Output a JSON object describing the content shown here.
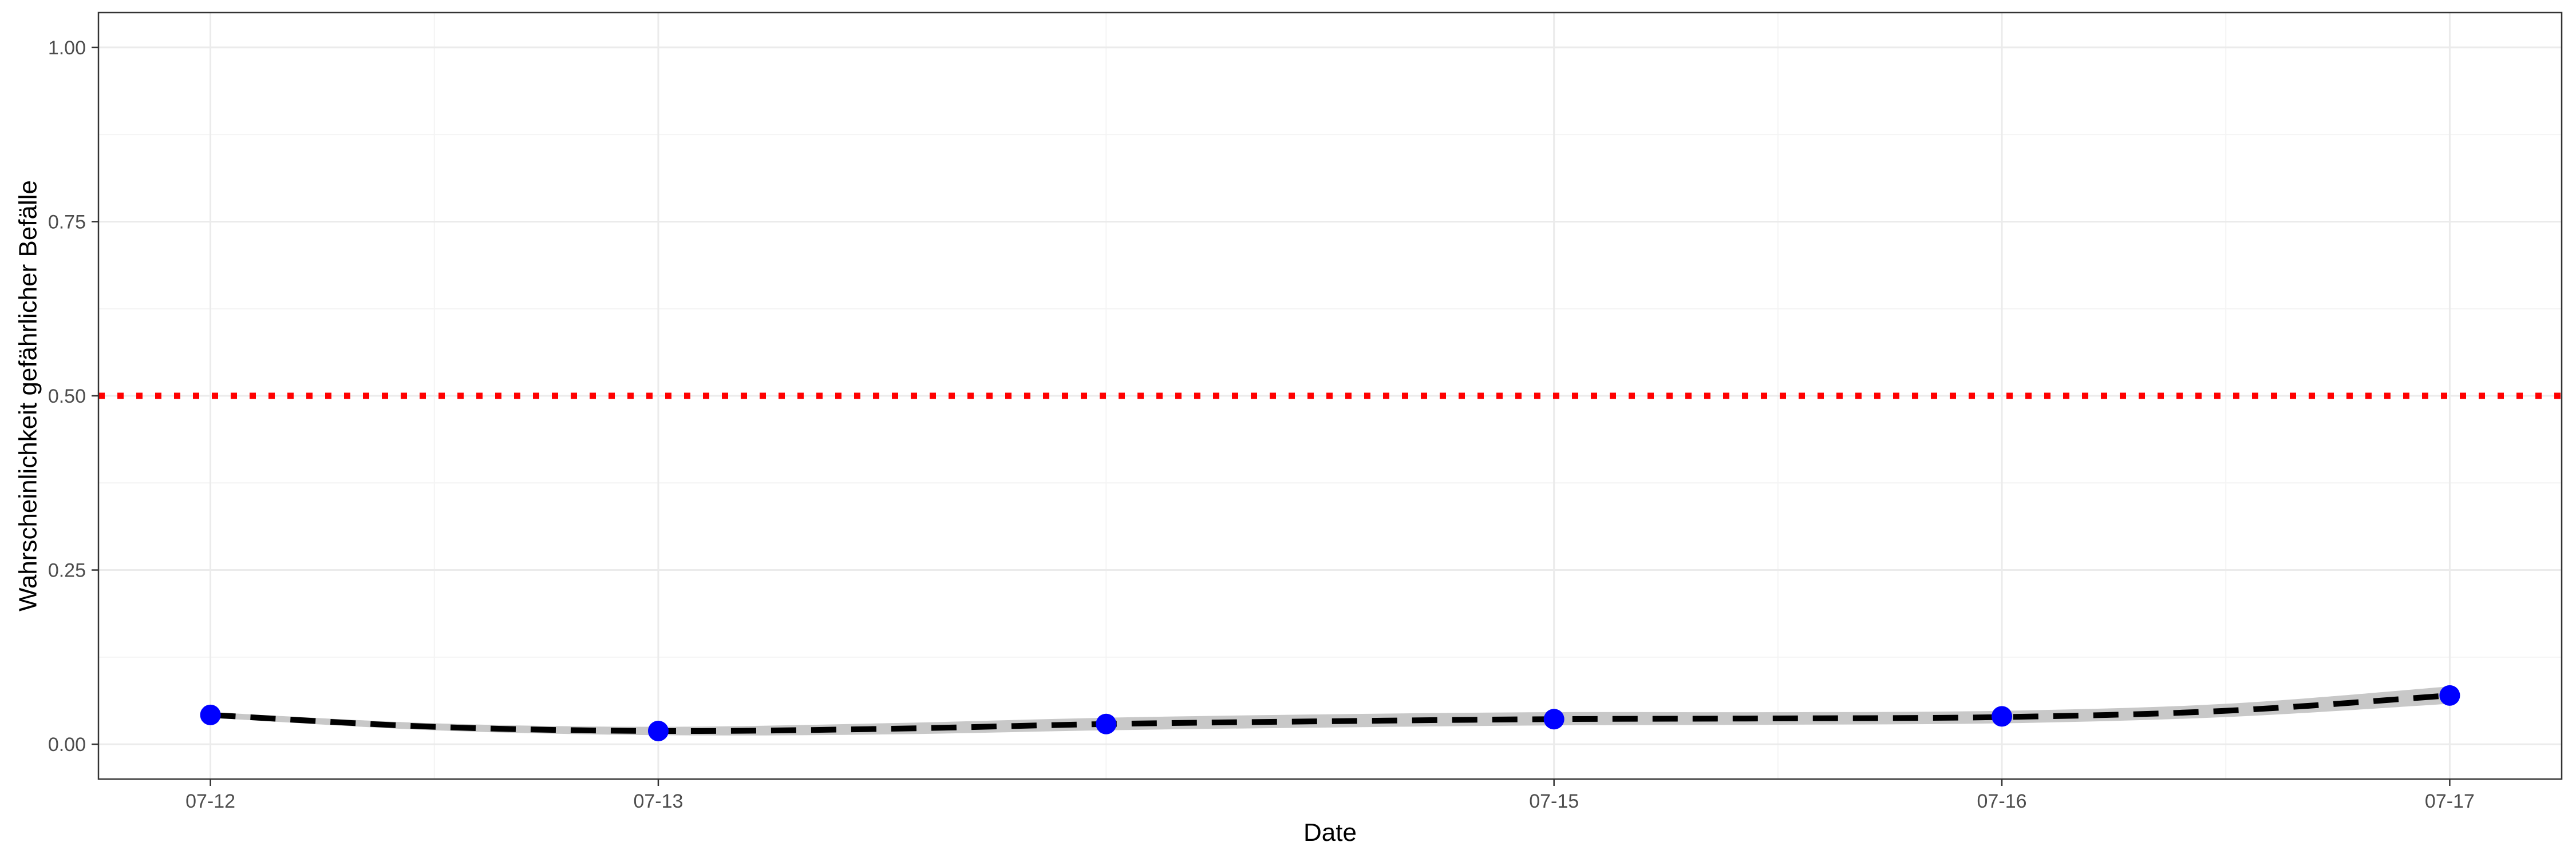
{
  "chart_data": {
    "type": "line",
    "title": "",
    "xlabel": "Date",
    "ylabel": "Wahrscheinlichkeit gefährlicher Befälle",
    "x_ticks": [
      "07-12",
      "07-13",
      "07-15",
      "07-16",
      "07-17"
    ],
    "x_tick_days": [
      12,
      13,
      15,
      16,
      17
    ],
    "y_ticks": [
      "0.00",
      "0.25",
      "0.50",
      "0.75",
      "1.00"
    ],
    "y_tick_values": [
      0,
      0.25,
      0.5,
      0.75,
      1.0
    ],
    "xlim": [
      11.75,
      17.25
    ],
    "ylim": [
      -0.05,
      1.05
    ],
    "grid": true,
    "legend": "none",
    "points": {
      "x": [
        12,
        13,
        14,
        15,
        16,
        17
      ],
      "y": [
        0.042,
        0.019,
        0.029,
        0.036,
        0.04,
        0.07
      ],
      "color": "#0000ff"
    },
    "smooth_line": {
      "x": [
        12,
        12.5,
        13,
        13.5,
        14,
        14.5,
        15,
        15.5,
        16,
        16.5,
        17
      ],
      "y": [
        0.042,
        0.025,
        0.019,
        0.022,
        0.029,
        0.033,
        0.036,
        0.037,
        0.039,
        0.048,
        0.07
      ],
      "band_lower": [
        0.038,
        0.02,
        0.013,
        0.014,
        0.02,
        0.024,
        0.027,
        0.028,
        0.03,
        0.039,
        0.058
      ],
      "band_upper": [
        0.046,
        0.03,
        0.025,
        0.03,
        0.038,
        0.043,
        0.046,
        0.046,
        0.048,
        0.058,
        0.083
      ],
      "line_color": "#000000",
      "band_color": "#c8c8c8",
      "style": "dashed"
    },
    "threshold": {
      "y": 0.5,
      "color": "#ff0000",
      "style": "dotted"
    }
  }
}
